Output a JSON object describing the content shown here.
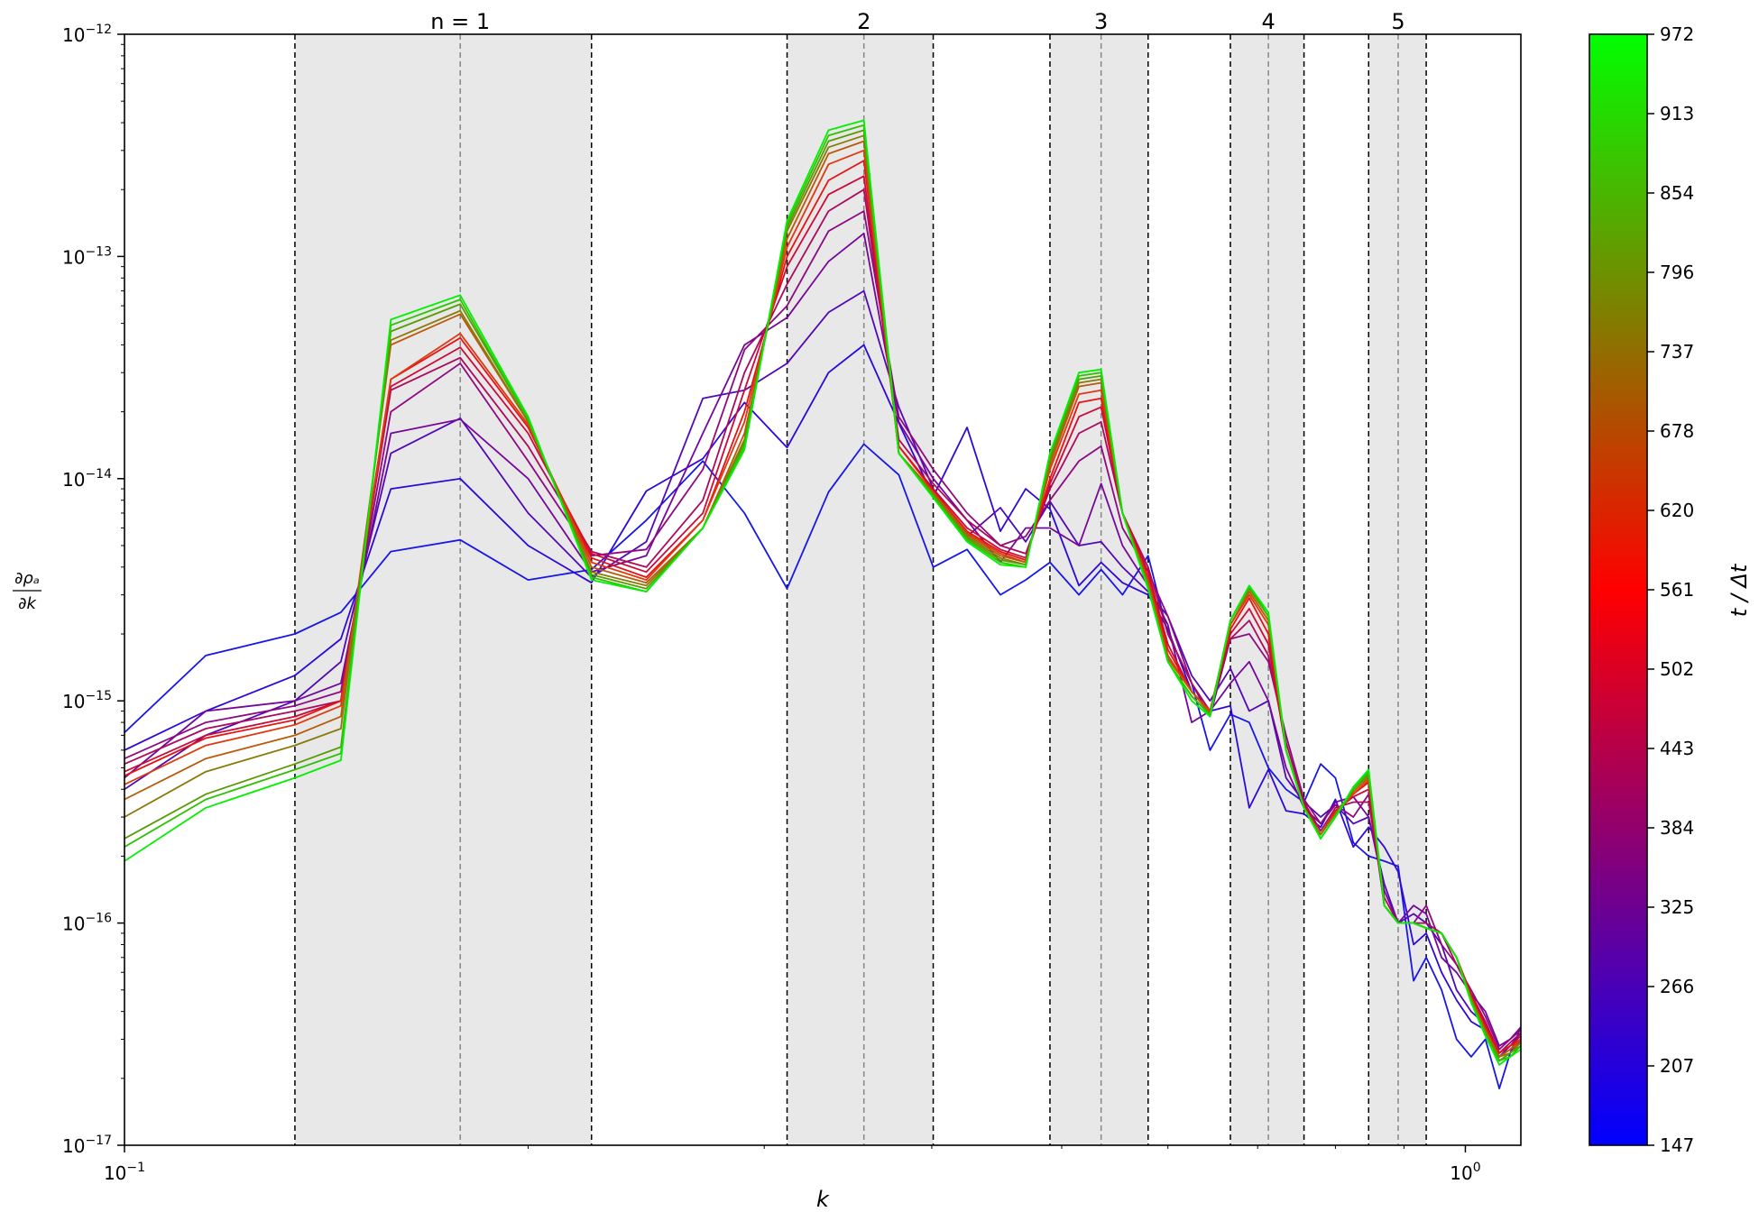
{
  "chart_data": {
    "type": "line",
    "title": "",
    "xlabel": "k",
    "ylabel": "∂ρa/∂k",
    "x_scale": "log",
    "y_scale": "log",
    "xlim": [
      0.1,
      1.1
    ],
    "ylim": [
      1e-17,
      1e-12
    ],
    "x_ticks": [
      {
        "value": 0.1,
        "base": "10",
        "exp": "−1"
      },
      {
        "value": 1.0,
        "base": "10",
        "exp": "0"
      }
    ],
    "y_ticks": [
      {
        "value": 1e-12,
        "base": "10",
        "exp": "−12"
      },
      {
        "value": 1e-13,
        "base": "10",
        "exp": "−13"
      },
      {
        "value": 1e-14,
        "base": "10",
        "exp": "−14"
      },
      {
        "value": 1e-15,
        "base": "10",
        "exp": "−15"
      },
      {
        "value": 1e-16,
        "base": "10",
        "exp": "−16"
      },
      {
        "value": 1e-17,
        "base": "10",
        "exp": "−17"
      }
    ],
    "grid": false,
    "bands": [
      {
        "label": "n = 1",
        "left": 0.134,
        "center": 0.178,
        "right": 0.223
      },
      {
        "label": "2",
        "left": 0.312,
        "center": 0.356,
        "right": 0.401
      },
      {
        "label": "3",
        "left": 0.49,
        "center": 0.535,
        "right": 0.58
      },
      {
        "label": "4",
        "left": 0.668,
        "center": 0.713,
        "right": 0.758
      },
      {
        "label": "5",
        "left": 0.847,
        "center": 0.891,
        "right": 0.935
      }
    ],
    "colorbar": {
      "label": "t / Δt",
      "ticks": [
        "147",
        "207",
        "266",
        "325",
        "384",
        "443",
        "502",
        "561",
        "620",
        "678",
        "737",
        "796",
        "854",
        "913",
        "972"
      ],
      "colors": [
        "#0000ff",
        "#ff0000",
        "#00ff00"
      ]
    },
    "x": [
      0.1,
      0.115,
      0.134,
      0.145,
      0.158,
      0.178,
      0.2,
      0.223,
      0.245,
      0.27,
      0.29,
      0.312,
      0.335,
      0.356,
      0.378,
      0.401,
      0.425,
      0.45,
      0.47,
      0.49,
      0.515,
      0.535,
      0.555,
      0.58,
      0.6,
      0.625,
      0.645,
      0.668,
      0.69,
      0.713,
      0.735,
      0.758,
      0.78,
      0.8,
      0.825,
      0.847,
      0.87,
      0.891,
      0.915,
      0.935,
      0.96,
      0.985,
      1.01,
      1.035,
      1.06,
      1.08,
      1.1
    ],
    "series": [
      {
        "name": "147",
        "color": "#1818e6",
        "values": [
          7.2e-16,
          1.6e-15,
          2e-15,
          2.5e-15,
          4.7e-15,
          5.3e-15,
          3.5e-15,
          3.9e-15,
          6.5e-15,
          1.2e-14,
          7e-15,
          3.2e-15,
          8.7e-15,
          1.43e-14,
          1.04e-14,
          4e-15,
          4.8e-15,
          3e-15,
          3.5e-15,
          4.2e-15,
          3e-15,
          3.9e-15,
          3e-15,
          4.5e-15,
          2e-15,
          1.2e-15,
          6e-16,
          8.7e-16,
          8e-16,
          5e-16,
          4e-16,
          3.5e-16,
          5.2e-16,
          4.5e-16,
          2.3e-16,
          2e-16,
          1.9e-16,
          1.8e-16,
          5.5e-17,
          7e-17,
          5e-17,
          3e-17,
          2.5e-17,
          3e-17,
          1.8e-17,
          2.6e-17,
          3e-17
        ]
      },
      {
        "name": "207",
        "color": "#2f08d8",
        "values": [
          6e-16,
          9e-16,
          1.3e-15,
          1.9e-15,
          9e-15,
          1e-14,
          5e-15,
          3.4e-15,
          8.8e-15,
          1.23e-14,
          2.2e-14,
          1.38e-14,
          3e-14,
          4e-14,
          1.78e-14,
          8.3e-15,
          1.7e-14,
          5.8e-15,
          9e-15,
          7.3e-15,
          3.3e-15,
          4.2e-15,
          3.4e-15,
          3e-15,
          2.1e-15,
          1.1e-15,
          9e-16,
          9.5e-16,
          3.3e-16,
          4.9e-16,
          3.2e-16,
          3.1e-16,
          2.7e-16,
          3.6e-16,
          2.2e-16,
          2.7e-16,
          2.2e-16,
          1.7e-16,
          8e-17,
          9e-17,
          6e-17,
          4.5e-17,
          3.6e-17,
          3.3e-17,
          2.4e-17,
          2.6e-17,
          3.4e-17
        ]
      },
      {
        "name": "266",
        "color": "#5209b5",
        "values": [
          4e-16,
          7e-16,
          1e-15,
          1.5e-15,
          1.3e-14,
          1.87e-14,
          7e-15,
          3.6e-15,
          5.2e-15,
          2.3e-14,
          2.5e-14,
          3.3e-14,
          5.6e-14,
          7e-14,
          2.1e-14,
          9e-15,
          5.5e-15,
          7.4e-15,
          5.2e-15,
          7.9e-15,
          5e-15,
          5.2e-15,
          4e-15,
          3.1e-15,
          2.4e-15,
          1.3e-15,
          1e-15,
          1.4e-15,
          9e-16,
          1e-15,
          4.5e-16,
          3.5e-16,
          3e-16,
          3.4e-16,
          2.8e-16,
          3e-16,
          1.5e-16,
          1e-16,
          1.1e-16,
          1e-16,
          8e-17,
          5e-17,
          4e-17,
          3.5e-17,
          2.5e-17,
          2.8e-17,
          3.2e-17
        ]
      },
      {
        "name": "325",
        "color": "#75089a",
        "values": [
          4.5e-16,
          9e-16,
          1e-15,
          1.2e-15,
          1.6e-14,
          1.85e-14,
          1e-14,
          3.8e-15,
          4.5e-15,
          1.6e-14,
          4e-14,
          5.3e-14,
          9.5e-14,
          1.27e-13,
          1.8e-14,
          1e-14,
          6.5e-15,
          4.2e-15,
          6e-15,
          6e-15,
          5e-15,
          9.5e-15,
          5e-15,
          3.3e-15,
          2.2e-15,
          8e-16,
          9e-16,
          1.2e-15,
          1.5e-15,
          1e-15,
          5e-16,
          3.3e-16,
          2.8e-16,
          3.5e-16,
          3.7e-16,
          3e-16,
          1.4e-16,
          1e-16,
          1.2e-16,
          1.1e-16,
          7e-17,
          6e-17,
          4.8e-17,
          4e-17,
          2.8e-17,
          3e-17,
          3.4e-17
        ]
      },
      {
        "name": "384",
        "color": "#8f0a80",
        "values": [
          5.5e-16,
          8e-16,
          9.5e-16,
          1.1e-15,
          2e-14,
          3.3e-14,
          1.2e-14,
          4.5e-15,
          4.8e-15,
          1.1e-14,
          3.8e-14,
          6e-14,
          1.3e-13,
          1.6e-13,
          1.9e-14,
          1.1e-14,
          7e-15,
          5e-15,
          5.5e-15,
          8e-15,
          1.2e-14,
          1.4e-14,
          6e-15,
          3.8e-15,
          2.4e-15,
          1.2e-15,
          8.5e-16,
          1.9e-15,
          2e-15,
          1.5e-15,
          7e-16,
          3.6e-16,
          2.8e-16,
          3.4e-16,
          3e-16,
          3.8e-16,
          1.2e-16,
          1e-16,
          1e-16,
          1.2e-16,
          8e-17,
          6.5e-17,
          5e-17,
          3.8e-17,
          2.7e-17,
          3e-17,
          3.3e-17
        ]
      },
      {
        "name": "443",
        "color": "#ab0a5e",
        "values": [
          5.2e-16,
          7.5e-16,
          9e-16,
          1e-15,
          2.5e-14,
          3.5e-14,
          1.4e-14,
          4.7e-15,
          4e-15,
          8e-15,
          3e-14,
          7.5e-14,
          1.6e-13,
          2e-13,
          1.5e-14,
          9.5e-15,
          6.5e-15,
          5e-15,
          4.6e-15,
          9e-15,
          1.6e-14,
          1.8e-14,
          7e-15,
          4e-15,
          2e-15,
          1.2e-15,
          9e-16,
          1.9e-15,
          2.3e-15,
          1.6e-15,
          6.5e-16,
          3.5e-16,
          2.6e-16,
          3.3e-16,
          3.5e-16,
          3.5e-16,
          1.3e-16,
          1e-16,
          1e-16,
          1e-16,
          9e-17,
          6.5e-17,
          4.8e-17,
          3.6e-17,
          2.6e-17,
          2.9e-17,
          3.2e-17
        ]
      },
      {
        "name": "502",
        "color": "#cc0a3a",
        "values": [
          4.8e-16,
          7e-16,
          8.5e-16,
          1e-15,
          2.6e-14,
          3.9e-14,
          1.6e-14,
          4.6e-15,
          3.8e-15,
          7e-15,
          2.5e-14,
          9e-14,
          1.9e-13,
          2.3e-13,
          1.4e-14,
          9e-15,
          6e-15,
          4.8e-15,
          4.4e-15,
          9.5e-15,
          1.9e-14,
          2.1e-14,
          7e-15,
          3.8e-15,
          1.8e-15,
          1.1e-15,
          9e-16,
          2e-15,
          2.6e-15,
          1.8e-15,
          6e-16,
          3.4e-16,
          2.5e-16,
          3.2e-16,
          3.7e-16,
          4e-16,
          1.2e-16,
          1e-16,
          1e-16,
          9.5e-17,
          9e-17,
          7e-17,
          4.8e-17,
          3.5e-17,
          2.6e-17,
          2.8e-17,
          3.1e-17
        ]
      },
      {
        "name": "561",
        "color": "#e51414",
        "values": [
          4.6e-16,
          6.8e-16,
          8.2e-16,
          1e-15,
          2.8e-14,
          4.3e-14,
          1.7e-14,
          4.4e-15,
          3.6e-15,
          6.5e-15,
          2e-14,
          1e-13,
          2.2e-13,
          2.7e-13,
          1.4e-14,
          8.8e-15,
          5.8e-15,
          4.7e-15,
          4.3e-15,
          1e-14,
          2.2e-14,
          2.3e-14,
          7e-15,
          3.6e-15,
          1.7e-15,
          1.1e-15,
          9e-16,
          2.1e-15,
          2.9e-15,
          2e-15,
          6e-16,
          3.3e-16,
          2.5e-16,
          3.2e-16,
          3.8e-16,
          4.3e-16,
          1.2e-16,
          1e-16,
          1e-16,
          9.5e-17,
          9e-17,
          7e-17,
          4.7e-17,
          3.4e-17,
          2.6e-17,
          2.8e-17,
          3e-17
        ]
      },
      {
        "name": "620",
        "color": "#de3a10",
        "values": [
          4.2e-16,
          6.3e-16,
          7.8e-16,
          9.5e-16,
          2.8e-14,
          4.5e-14,
          1.75e-14,
          4.2e-15,
          3.5e-15,
          6.5e-15,
          1.8e-14,
          1.1e-13,
          2.6e-13,
          3e-13,
          1.3e-14,
          8.7e-15,
          5.7e-15,
          4.6e-15,
          4.2e-15,
          1.1e-14,
          2.4e-14,
          2.5e-14,
          7e-15,
          3.5e-15,
          1.6e-15,
          1.1e-15,
          9e-16,
          2.2e-15,
          3e-15,
          2.2e-15,
          6e-16,
          3.3e-16,
          2.5e-16,
          3.1e-16,
          3.8e-16,
          4.4e-16,
          1.2e-16,
          1e-16,
          1e-16,
          9.5e-17,
          9e-17,
          7e-17,
          4.6e-17,
          3.3e-17,
          2.5e-17,
          2.7e-17,
          3e-17
        ]
      },
      {
        "name": "678",
        "color": "#b85a0a",
        "values": [
          3.6e-16,
          5.5e-16,
          7e-16,
          8.5e-16,
          4e-14,
          5.5e-14,
          1.8e-14,
          4e-15,
          3.4e-15,
          6e-15,
          1.6e-14,
          1.2e-13,
          2.9e-13,
          3.3e-13,
          1.3e-14,
          8.6e-15,
          5.6e-15,
          4.5e-15,
          4.2e-15,
          1.15e-14,
          2.6e-14,
          2.7e-14,
          7e-15,
          3.4e-15,
          1.55e-15,
          1.1e-15,
          8.8e-16,
          2.2e-15,
          3.1e-15,
          2.3e-15,
          6e-16,
          3.3e-16,
          2.5e-16,
          3.1e-16,
          3.9e-16,
          4.5e-16,
          1.2e-16,
          1e-16,
          1e-16,
          9.5e-17,
          9e-17,
          7e-17,
          4.6e-17,
          3.3e-17,
          2.5e-17,
          2.7e-17,
          2.9e-17
        ]
      },
      {
        "name": "737",
        "color": "#8a7a08",
        "values": [
          3e-16,
          4.8e-16,
          6.3e-16,
          7.5e-16,
          4.2e-14,
          5.7e-14,
          1.8e-14,
          3.8e-15,
          3.3e-15,
          6e-15,
          1.5e-14,
          1.3e-13,
          3.1e-13,
          3.5e-13,
          1.3e-14,
          8.5e-15,
          5.5e-15,
          4.4e-15,
          4.1e-15,
          1.2e-14,
          2.7e-14,
          2.8e-14,
          7e-15,
          3.3e-15,
          1.5e-15,
          1.05e-15,
          8.7e-16,
          2.3e-15,
          3.2e-15,
          2.4e-15,
          6e-16,
          3.3e-16,
          2.5e-16,
          3.1e-16,
          4e-16,
          4.6e-16,
          1.2e-16,
          1e-16,
          1e-16,
          9.5e-17,
          9e-17,
          7e-17,
          4.5e-17,
          3.2e-17,
          2.5e-17,
          2.6e-17,
          2.9e-17
        ]
      },
      {
        "name": "796",
        "color": "#5a9a06",
        "values": [
          2.4e-16,
          3.8e-16,
          5.2e-16,
          6.2e-16,
          4.6e-14,
          6.1e-14,
          1.85e-14,
          3.7e-15,
          3.2e-15,
          6e-15,
          1.45e-14,
          1.35e-13,
          3.3e-13,
          3.7e-13,
          1.3e-14,
          8.4e-15,
          5.4e-15,
          4.3e-15,
          4.1e-15,
          1.25e-14,
          2.8e-14,
          2.9e-14,
          7e-15,
          3.3e-15,
          1.5e-15,
          1.05e-15,
          8.7e-16,
          2.3e-15,
          3.2e-15,
          2.4e-15,
          6e-16,
          3.3e-16,
          2.4e-16,
          3e-16,
          4e-16,
          4.7e-16,
          1.2e-16,
          1e-16,
          1e-16,
          9.5e-17,
          9e-17,
          7e-17,
          4.5e-17,
          3.2e-17,
          2.4e-17,
          2.6e-17,
          2.8e-17
        ]
      },
      {
        "name": "854",
        "color": "#30c004",
        "values": [
          2.2e-16,
          3.6e-16,
          4.9e-16,
          5.8e-16,
          4.9e-14,
          6.4e-14,
          1.85e-14,
          3.6e-15,
          3.1e-15,
          6e-15,
          1.4e-14,
          1.4e-13,
          3.5e-13,
          3.9e-13,
          1.3e-14,
          8.3e-15,
          5.3e-15,
          4.2e-15,
          4e-15,
          1.3e-14,
          2.9e-14,
          3e-14,
          7e-15,
          3.2e-15,
          1.5e-15,
          1.05e-15,
          8.6e-16,
          2.3e-15,
          3.3e-15,
          2.4e-15,
          6e-16,
          3.3e-16,
          2.4e-16,
          3e-16,
          4e-16,
          4.8e-16,
          1.2e-16,
          1e-16,
          1e-16,
          9.5e-17,
          9e-17,
          7e-17,
          4.4e-17,
          3.1e-17,
          2.4e-17,
          2.5e-17,
          2.8e-17
        ]
      },
      {
        "name": "972",
        "color": "#00f000",
        "values": [
          1.9e-16,
          3.3e-16,
          4.5e-16,
          5.4e-16,
          5.2e-14,
          6.7e-14,
          1.9e-14,
          3.5e-15,
          3.1e-15,
          6e-15,
          1.35e-14,
          1.45e-13,
          3.7e-13,
          4.1e-13,
          1.3e-14,
          8.2e-15,
          5.2e-15,
          4.1e-15,
          4e-15,
          1.3e-14,
          3e-14,
          3.1e-14,
          7e-15,
          3.2e-15,
          1.5e-15,
          1e-15,
          8.5e-16,
          2.3e-15,
          3.3e-15,
          2.5e-15,
          6e-16,
          3.3e-16,
          2.4e-16,
          3e-16,
          4.1e-16,
          4.9e-16,
          1.2e-16,
          1e-16,
          1e-16,
          9.5e-17,
          9e-17,
          7e-17,
          4.4e-17,
          3.1e-17,
          2.3e-17,
          2.5e-17,
          2.7e-17
        ]
      }
    ]
  }
}
